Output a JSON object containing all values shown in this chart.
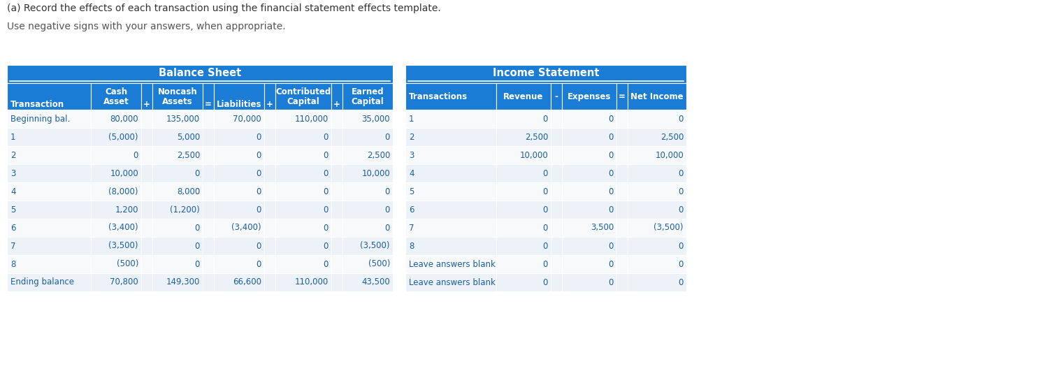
{
  "title_line1": "(a) Record the effects of each transaction using the financial statement effects template.",
  "title_line2": "Use negative signs with your answers, when appropriate.",
  "header_color": "#1b7cd6",
  "header_text_color": "#ffffff",
  "row_color_a": "#edf2f8",
  "row_color_b": "#f7f9fb",
  "text_color": "#1a5fa0",
  "border_color": "#ffffff",
  "bs_header": "Balance Sheet",
  "is_header": "Income Statement",
  "bs_rows": [
    [
      "Beginning bal.",
      "80,000",
      "135,000",
      "70,000",
      "110,000",
      "35,000"
    ],
    [
      "1",
      "(5,000)",
      "5,000",
      "0",
      "0",
      "0"
    ],
    [
      "2",
      "0",
      "2,500",
      "0",
      "0",
      "2,500"
    ],
    [
      "3",
      "10,000",
      "0",
      "0",
      "0",
      "10,000"
    ],
    [
      "4",
      "(8,000)",
      "8,000",
      "0",
      "0",
      "0"
    ],
    [
      "5",
      "1,200",
      "(1,200)",
      "0",
      "0",
      "0"
    ],
    [
      "6",
      "(3,400)",
      "0",
      "(3,400)",
      "0",
      "0"
    ],
    [
      "7",
      "(3,500)",
      "0",
      "0",
      "0",
      "(3,500)"
    ],
    [
      "8",
      "(500)",
      "0",
      "0",
      "0",
      "(500)"
    ],
    [
      "Ending balance",
      "70,800",
      "149,300",
      "66,600",
      "110,000",
      "43,500"
    ]
  ],
  "is_rows": [
    [
      "1",
      "0",
      "0",
      "0"
    ],
    [
      "2",
      "2,500",
      "0",
      "2,500"
    ],
    [
      "3",
      "10,000",
      "0",
      "10,000"
    ],
    [
      "4",
      "0",
      "0",
      "0"
    ],
    [
      "5",
      "0",
      "0",
      "0"
    ],
    [
      "6",
      "0",
      "0",
      "0"
    ],
    [
      "7",
      "0",
      "3,500",
      "(3,500)"
    ],
    [
      "8",
      "0",
      "0",
      "0"
    ],
    [
      "Leave answers blank",
      "0",
      "0",
      "0"
    ],
    [
      "Leave answers blank",
      "0",
      "0",
      "0"
    ]
  ]
}
